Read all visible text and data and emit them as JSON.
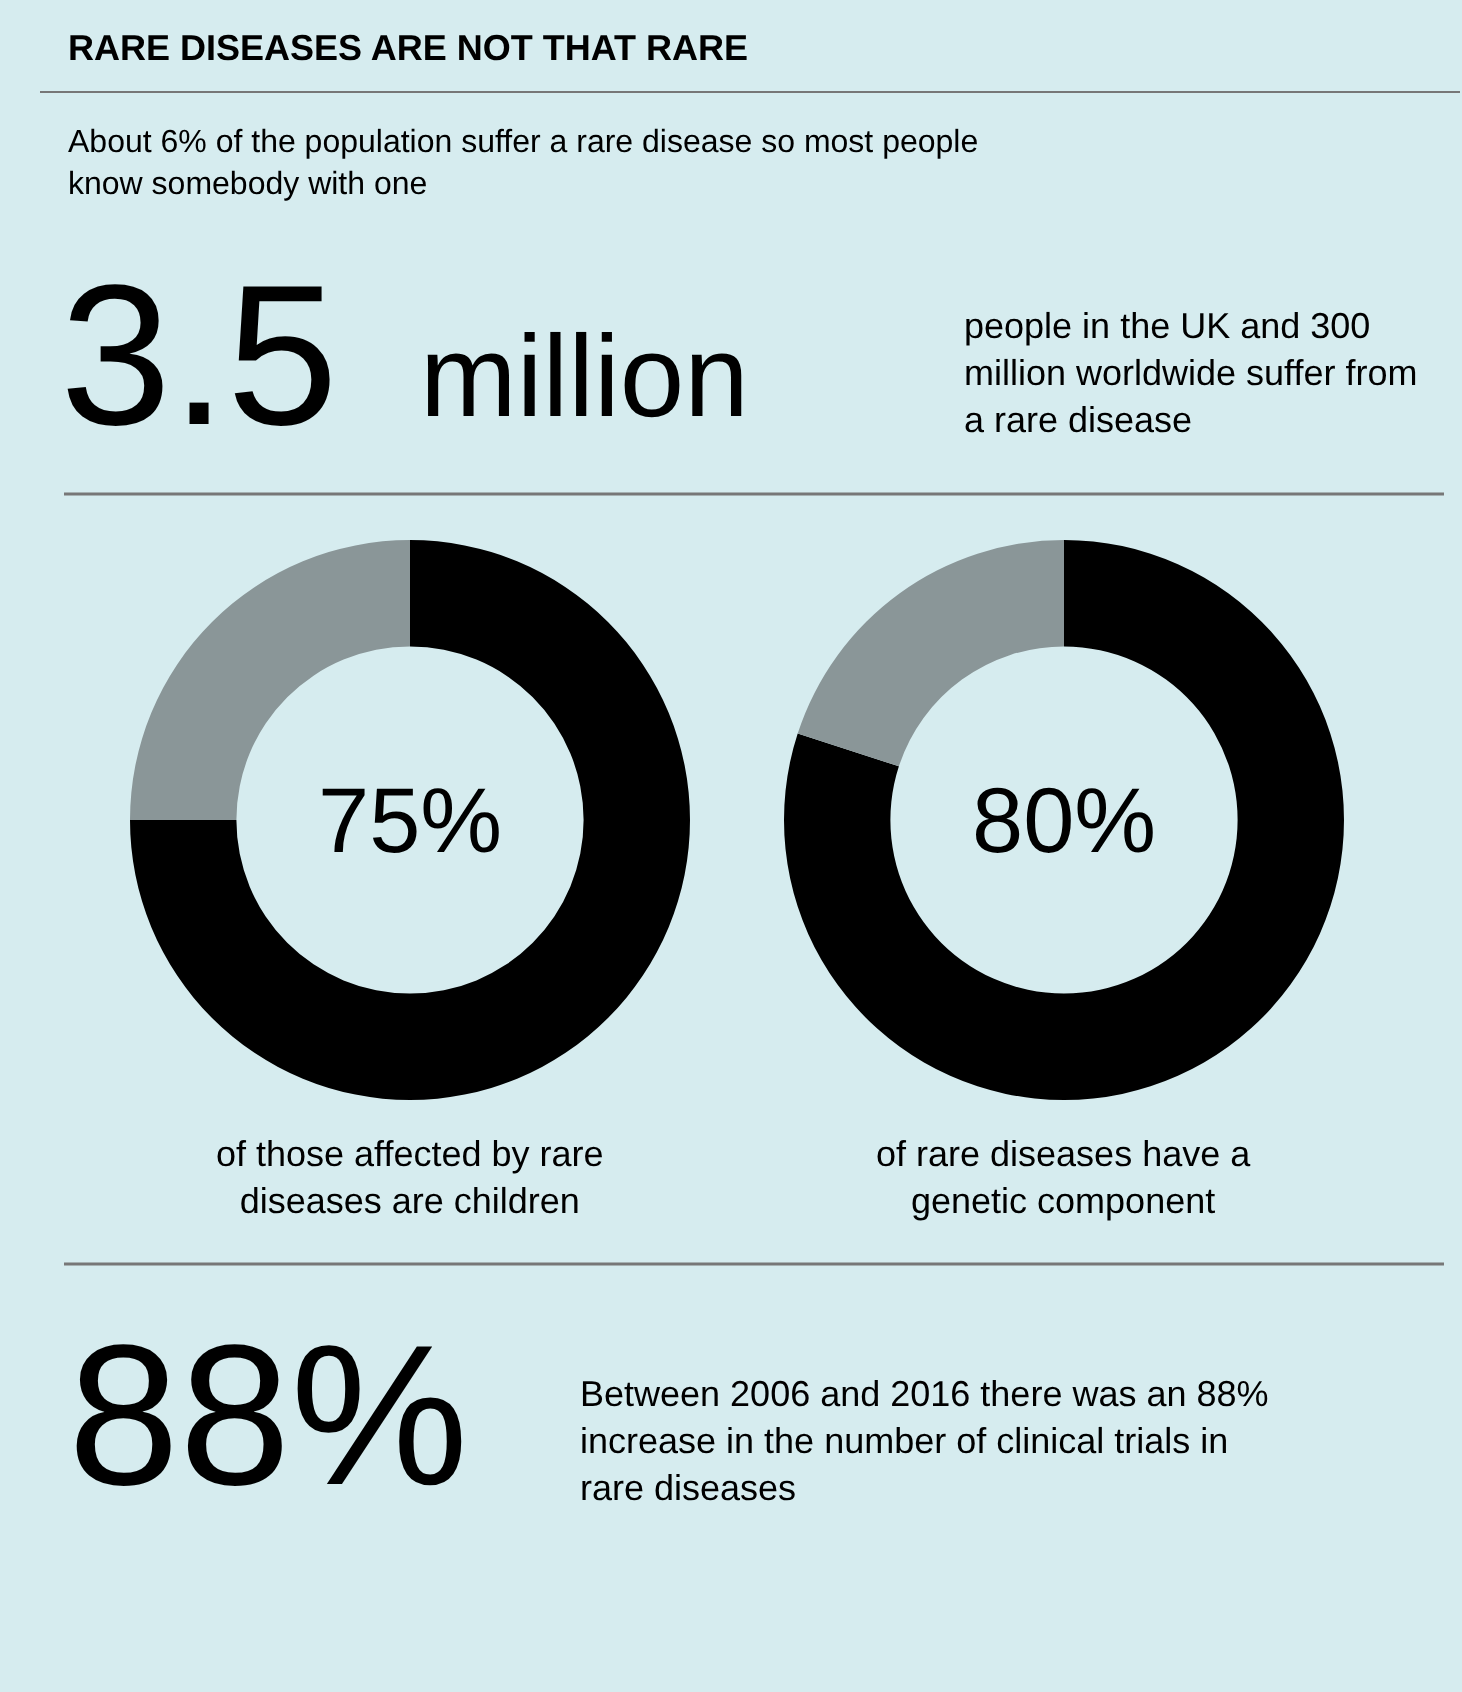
{
  "chart_data": [
    {
      "type": "other",
      "title": "RARE DISEASES ARE NOT THAT RARE",
      "subtitle": "About 6% of the population suffer a rare disease so most people know somebody with one",
      "annotations": [
        "3.5",
        "million",
        "people in the UK and 300 million worldwide suffer from a rare disease"
      ]
    },
    {
      "type": "donut",
      "categories": [
        null,
        null
      ],
      "values": [
        75,
        25
      ],
      "colors": [
        "#000000",
        "#8a9698"
      ],
      "value_labels": [
        "75%",
        null
      ],
      "annotations": [
        "of those affected by rare diseases are children"
      ]
    },
    {
      "type": "donut",
      "categories": [
        null,
        null
      ],
      "values": [
        80,
        20
      ],
      "colors": [
        "#000000",
        "#8a9698"
      ],
      "value_labels": [
        "80%",
        null
      ],
      "annotations": [
        "of rare diseases have a genetic component"
      ]
    },
    {
      "type": "other",
      "annotations": [
        "88%",
        "Between 2006 and 2016 there was an 88% increase in the number of clinical trials in rare diseases"
      ]
    }
  ]
}
